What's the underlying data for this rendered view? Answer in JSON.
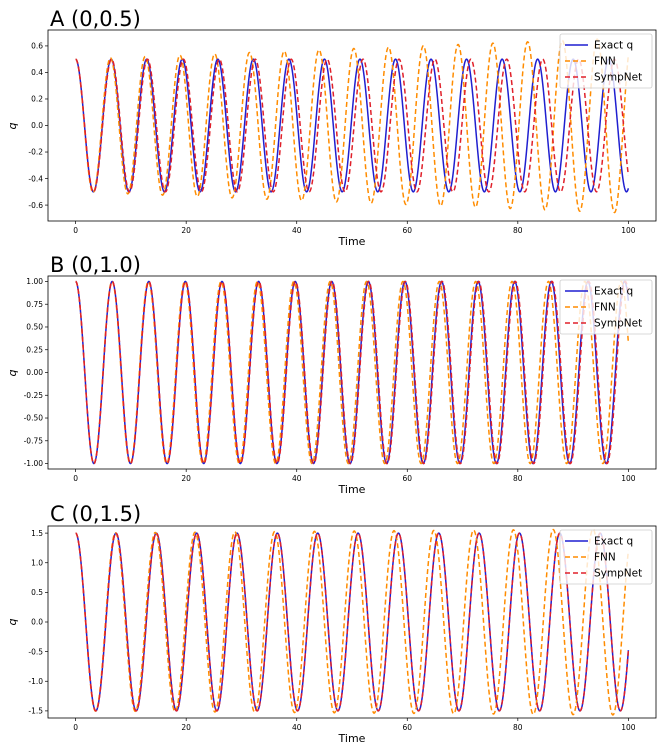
{
  "chart_data": [
    {
      "type": "line",
      "title": "A  (0,0.5)",
      "xlabel": "Time",
      "ylabel": "q",
      "xlim": [
        -5,
        105
      ],
      "ylim": [
        -0.72,
        0.72
      ],
      "xticks": [
        "0",
        "20",
        "40",
        "60",
        "80",
        "100"
      ],
      "xtick_values": [
        0,
        20,
        40,
        60,
        80,
        100
      ],
      "yticks": [
        "-0.6",
        "-0.4",
        "-0.2",
        "0.0",
        "0.2",
        "0.4",
        "0.6"
      ],
      "ytick_values": [
        -0.6,
        -0.4,
        -0.2,
        0.0,
        0.2,
        0.4,
        0.6
      ],
      "legend_position": "top-right",
      "series": [
        {
          "name": "Exact q",
          "color": "#1f1fd0",
          "style": "solid",
          "amplitude": 0.5,
          "period": 6.43,
          "phase": 0,
          "t_end": 100
        },
        {
          "name": "FNN",
          "color": "#ff8c00",
          "style": "dashed",
          "amplitude": 0.5,
          "amplitude_end": 0.66,
          "period": 6.29,
          "phase": 0,
          "t_end": 100
        },
        {
          "name": "SympNet",
          "color": "#e0202a",
          "style": "dashed",
          "amplitude": 0.5,
          "period": 6.5,
          "phase": 0,
          "t_end": 100
        }
      ]
    },
    {
      "type": "line",
      "title": "B  (0,1.0)",
      "xlabel": "Time",
      "ylabel": "q",
      "xlim": [
        -5,
        105
      ],
      "ylim": [
        -1.06,
        1.06
      ],
      "xticks": [
        "0",
        "20",
        "40",
        "60",
        "80",
        "100"
      ],
      "xtick_values": [
        0,
        20,
        40,
        60,
        80,
        100
      ],
      "yticks": [
        "-1.00",
        "-0.75",
        "-0.50",
        "-0.25",
        "0.00",
        "0.25",
        "0.50",
        "0.75",
        "1.00"
      ],
      "ytick_values": [
        -1.0,
        -0.75,
        -0.5,
        -0.25,
        0.0,
        0.25,
        0.5,
        0.75,
        1.0
      ],
      "legend_position": "top-right",
      "series": [
        {
          "name": "Exact q",
          "color": "#1f1fd0",
          "style": "solid",
          "amplitude": 1.0,
          "period": 6.62,
          "phase": 0,
          "t_end": 100
        },
        {
          "name": "FNN",
          "color": "#ff8c00",
          "style": "dashed",
          "amplitude": 1.0,
          "period": 6.58,
          "phase": 0,
          "t_end": 100
        },
        {
          "name": "SympNet",
          "color": "#e0202a",
          "style": "dashed",
          "amplitude": 1.0,
          "period": 6.63,
          "phase": 0,
          "t_end": 100
        }
      ]
    },
    {
      "type": "line",
      "title": "C  (0,1.5)",
      "xlabel": "Time",
      "ylabel": "q",
      "xlim": [
        -5,
        105
      ],
      "ylim": [
        -1.62,
        1.62
      ],
      "xticks": [
        "0",
        "20",
        "40",
        "60",
        "80",
        "100"
      ],
      "xtick_values": [
        0,
        20,
        40,
        60,
        80,
        100
      ],
      "yticks": [
        "-1.5",
        "-1.0",
        "-0.5",
        "0.0",
        "0.5",
        "1.0",
        "1.5"
      ],
      "ytick_values": [
        -1.5,
        -1.0,
        -0.5,
        0.0,
        0.5,
        1.0,
        1.5
      ],
      "legend_position": "top-right",
      "series": [
        {
          "name": "Exact q",
          "color": "#1f1fd0",
          "style": "solid",
          "amplitude": 1.5,
          "period": 7.3,
          "phase": 0,
          "t_end": 100
        },
        {
          "name": "FNN",
          "color": "#ff8c00",
          "style": "dashed",
          "amplitude": 1.5,
          "amplitude_end": 1.57,
          "period": 7.2,
          "phase": 0,
          "t_end": 100
        },
        {
          "name": "SympNet",
          "color": "#e0202a",
          "style": "dashed",
          "amplitude": 1.5,
          "period": 7.3,
          "phase": 0,
          "t_end": 100
        }
      ]
    }
  ]
}
